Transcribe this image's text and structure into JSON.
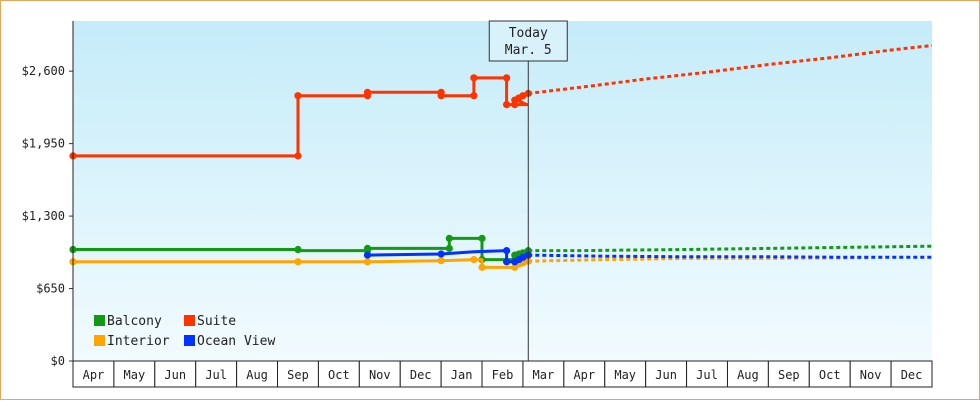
{
  "chart_data": {
    "type": "line",
    "title": "",
    "xlabel": "",
    "ylabel": "",
    "ylim": [
      0,
      3050
    ],
    "y_ticks": [
      {
        "value": 0,
        "label": "$0"
      },
      {
        "value": 650,
        "label": "$650"
      },
      {
        "value": 1300,
        "label": "$1,300"
      },
      {
        "value": 1950,
        "label": "$1,950"
      },
      {
        "value": 2600,
        "label": "$2,600"
      }
    ],
    "x_months": [
      "Apr",
      "May",
      "Jun",
      "Jul",
      "Aug",
      "Sep",
      "Oct",
      "Nov",
      "Dec",
      "Jan",
      "Feb",
      "Mar",
      "Apr",
      "May",
      "Jun",
      "Jul",
      "Aug",
      "Sep",
      "Oct",
      "Nov",
      "Dec"
    ],
    "today": {
      "line1": "Today",
      "line2": "Mar. 5",
      "x": 11.13
    },
    "grid": false,
    "legend_position": "bottom-left",
    "series": [
      {
        "name": "Balcony",
        "color": "#139a13",
        "history": [
          [
            0,
            1000
          ],
          [
            5.5,
            1000
          ],
          [
            5.5,
            990
          ],
          [
            7.2,
            990
          ],
          [
            7.2,
            1010
          ],
          [
            9.2,
            1010
          ],
          [
            9.2,
            1100
          ],
          [
            10.0,
            1100
          ],
          [
            10.0,
            910
          ],
          [
            10.8,
            910
          ],
          [
            10.8,
            950
          ],
          [
            11.0,
            970
          ],
          [
            11.13,
            990
          ]
        ],
        "markers": [
          [
            0,
            1000
          ],
          [
            5.5,
            1000
          ],
          [
            7.2,
            1010
          ],
          [
            7.2,
            990
          ],
          [
            9.2,
            1010
          ],
          [
            9.2,
            1100
          ],
          [
            10.0,
            1100
          ],
          [
            10.0,
            910
          ],
          [
            10.8,
            910
          ],
          [
            10.8,
            950
          ],
          [
            10.9,
            960
          ],
          [
            11.0,
            970
          ],
          [
            11.13,
            990
          ]
        ],
        "forecast": [
          [
            11.13,
            990
          ],
          [
            12.5,
            990
          ],
          [
            13.5,
            995
          ],
          [
            15.0,
            1000
          ],
          [
            17.0,
            1010
          ],
          [
            19.0,
            1020
          ],
          [
            21.0,
            1030
          ]
        ]
      },
      {
        "name": "Suite",
        "color": "#ff3300",
        "history": [
          [
            0,
            1840
          ],
          [
            5.5,
            1840
          ],
          [
            5.5,
            2380
          ],
          [
            7.2,
            2380
          ],
          [
            7.2,
            2410
          ],
          [
            9.0,
            2410
          ],
          [
            9.0,
            2380
          ],
          [
            9.8,
            2380
          ],
          [
            9.8,
            2540
          ],
          [
            10.6,
            2540
          ],
          [
            10.6,
            2300
          ],
          [
            11.1,
            2300
          ],
          [
            10.85,
            2340
          ],
          [
            11.0,
            2380
          ],
          [
            11.13,
            2400
          ]
        ],
        "markers": [
          [
            0,
            1840
          ],
          [
            5.5,
            1840
          ],
          [
            5.5,
            2380
          ],
          [
            7.2,
            2380
          ],
          [
            7.2,
            2410
          ],
          [
            9.0,
            2410
          ],
          [
            9.0,
            2380
          ],
          [
            9.8,
            2380
          ],
          [
            9.8,
            2540
          ],
          [
            10.6,
            2540
          ],
          [
            10.6,
            2300
          ],
          [
            10.8,
            2300
          ],
          [
            10.8,
            2340
          ],
          [
            10.9,
            2360
          ],
          [
            11.0,
            2380
          ],
          [
            11.13,
            2400
          ]
        ],
        "forecast": [
          [
            11.13,
            2400
          ],
          [
            12.5,
            2460
          ],
          [
            14.0,
            2530
          ],
          [
            15.5,
            2590
          ],
          [
            17.0,
            2660
          ],
          [
            18.5,
            2720
          ],
          [
            20.0,
            2790
          ],
          [
            21.0,
            2830
          ]
        ]
      },
      {
        "name": "Interior",
        "color": "#ffa500",
        "history": [
          [
            0,
            890
          ],
          [
            5.5,
            890
          ],
          [
            7.2,
            890
          ],
          [
            9.0,
            900
          ],
          [
            9.8,
            910
          ],
          [
            10.0,
            910
          ],
          [
            10.0,
            840
          ],
          [
            10.8,
            840
          ],
          [
            11.0,
            880
          ],
          [
            11.13,
            895
          ]
        ],
        "markers": [
          [
            0,
            890
          ],
          [
            5.5,
            890
          ],
          [
            7.2,
            890
          ],
          [
            9.0,
            900
          ],
          [
            9.8,
            910
          ],
          [
            10.0,
            840
          ],
          [
            10.8,
            840
          ],
          [
            10.9,
            870
          ],
          [
            11.0,
            880
          ],
          [
            11.13,
            895
          ]
        ],
        "forecast": [
          [
            11.13,
            895
          ],
          [
            13.0,
            910
          ],
          [
            15.0,
            920
          ],
          [
            17.0,
            920
          ],
          [
            19.0,
            925
          ],
          [
            19.5,
            925
          ]
        ]
      },
      {
        "name": "Ocean View",
        "color": "#0033ff",
        "history": [
          [
            7.2,
            950
          ],
          [
            9.0,
            960
          ],
          [
            9.8,
            980
          ],
          [
            10.6,
            990
          ],
          [
            10.6,
            890
          ],
          [
            10.8,
            890
          ],
          [
            11.0,
            930
          ],
          [
            11.13,
            950
          ]
        ],
        "markers": [
          [
            7.2,
            950
          ],
          [
            9.0,
            960
          ],
          [
            10.6,
            990
          ],
          [
            10.6,
            890
          ],
          [
            10.8,
            890
          ],
          [
            10.9,
            910
          ],
          [
            11.0,
            930
          ],
          [
            11.13,
            950
          ]
        ],
        "forecast": [
          [
            11.13,
            950
          ],
          [
            13.0,
            940
          ],
          [
            15.0,
            935
          ],
          [
            17.0,
            935
          ],
          [
            19.0,
            930
          ],
          [
            21.0,
            930
          ]
        ]
      }
    ]
  }
}
